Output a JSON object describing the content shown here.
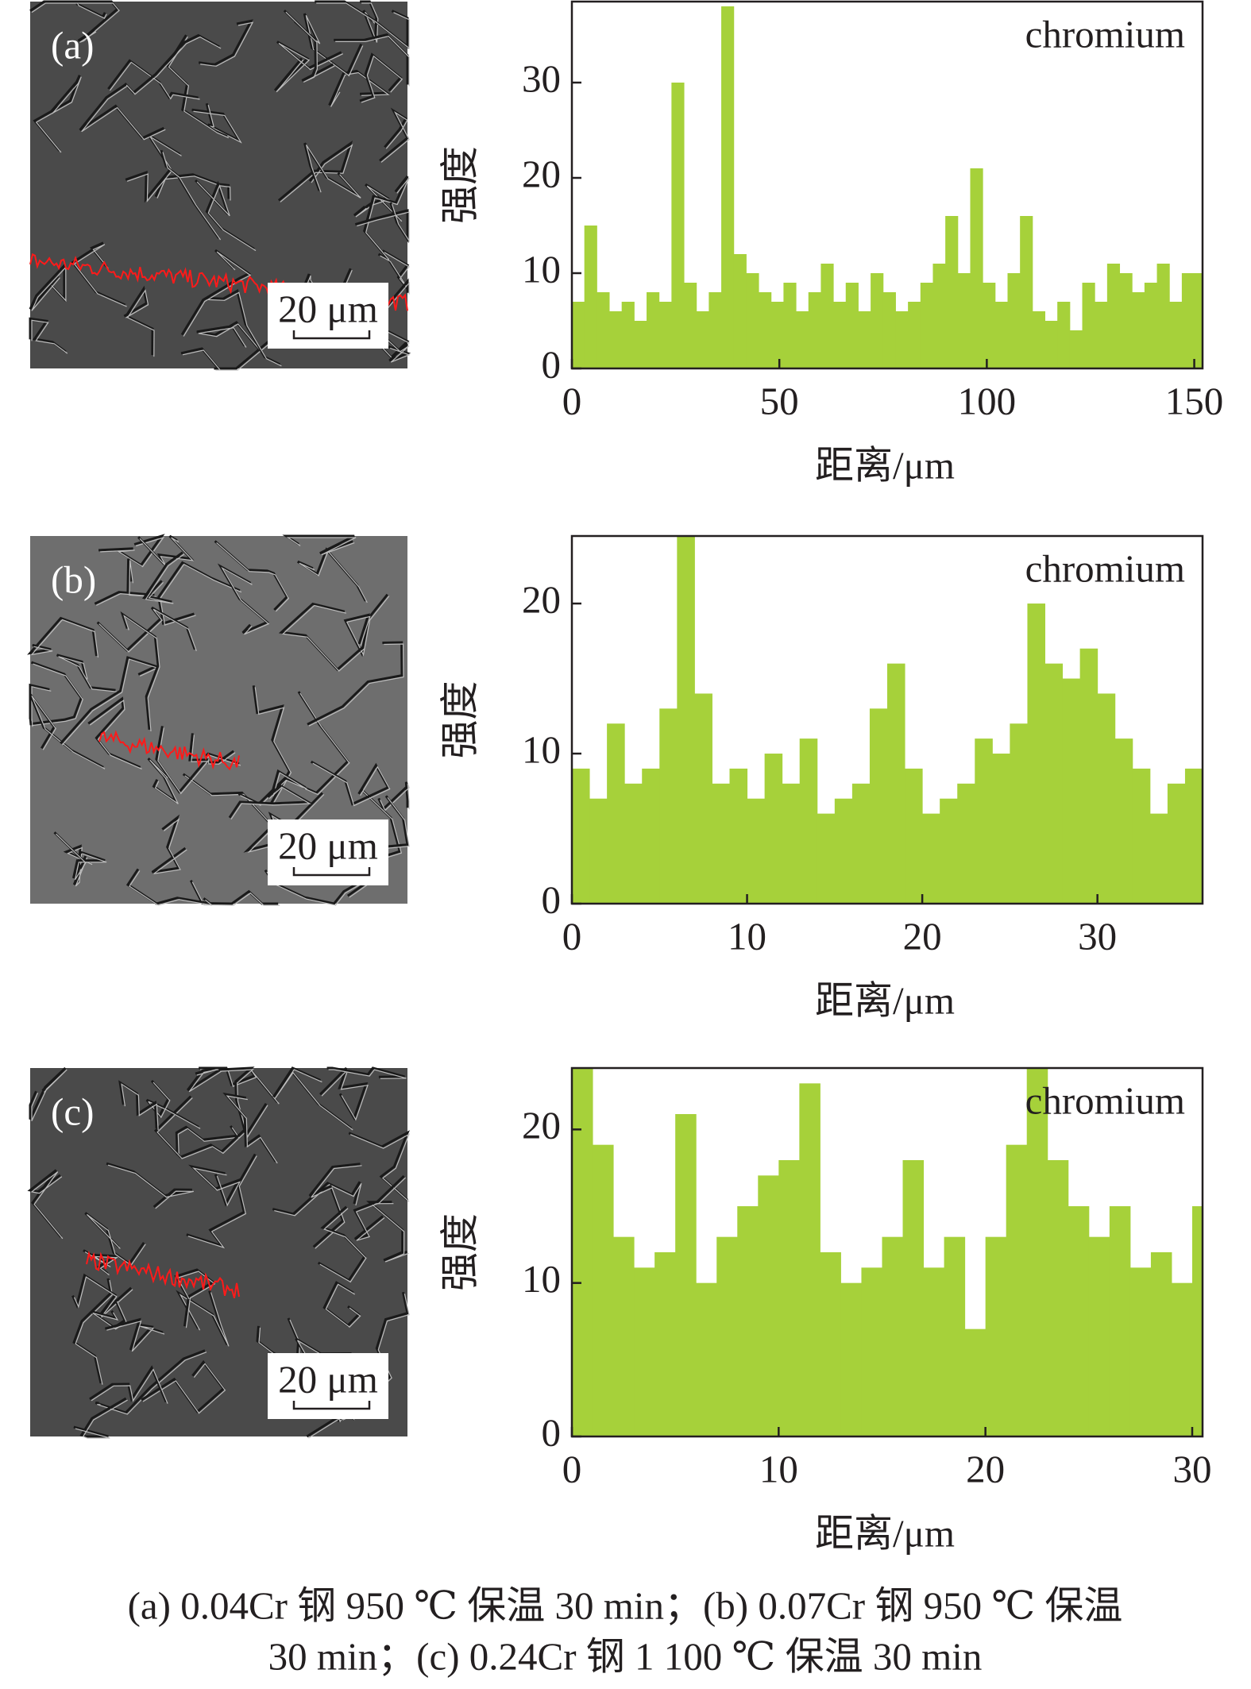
{
  "chart_data": [
    {
      "type": "bar",
      "annotation": "chromium",
      "xlabel": "距离/μm",
      "ylabel": "强度",
      "color": "#a6d13a",
      "x": [
        0,
        3,
        6,
        9,
        12,
        15,
        18,
        21,
        24,
        27,
        30,
        33,
        36,
        39,
        42,
        45,
        48,
        51,
        54,
        57,
        60,
        63,
        66,
        69,
        72,
        75,
        78,
        81,
        84,
        87,
        90,
        93,
        96,
        99,
        102,
        105,
        108,
        111,
        114,
        117,
        120,
        123,
        126,
        129,
        132,
        135,
        138,
        141,
        144,
        147,
        150
      ],
      "values": [
        7,
        15,
        8,
        6,
        7,
        5,
        8,
        7,
        30,
        9,
        6,
        8,
        38,
        12,
        10,
        8,
        7,
        9,
        6,
        8,
        11,
        7,
        9,
        6,
        10,
        8,
        6,
        7,
        9,
        11,
        16,
        10,
        21,
        9,
        7,
        10,
        16,
        6,
        5,
        7,
        4,
        9,
        7,
        11,
        10,
        8,
        9,
        11,
        7,
        10,
        10
      ],
      "xlim": [
        0,
        152
      ],
      "ylim": [
        0,
        38.5
      ],
      "xticks": [
        0,
        50,
        100,
        150
      ],
      "yticks": [
        0,
        10,
        20,
        30
      ]
    },
    {
      "type": "bar",
      "annotation": "chromium",
      "xlabel": "距离/μm",
      "ylabel": "强度",
      "color": "#a6d13a",
      "x": [
        0,
        1,
        2,
        3,
        4,
        5,
        6,
        7,
        8,
        9,
        10,
        11,
        12,
        13,
        14,
        15,
        16,
        17,
        18,
        19,
        20,
        21,
        22,
        23,
        24,
        25,
        26,
        27,
        28,
        29,
        30,
        31,
        32,
        33,
        34,
        35
      ],
      "values": [
        9,
        7,
        12,
        8,
        9,
        13,
        25,
        14,
        8,
        9,
        7,
        10,
        8,
        11,
        6,
        7,
        8,
        13,
        16,
        9,
        6,
        7,
        8,
        11,
        10,
        12,
        20,
        16,
        15,
        17,
        14,
        11,
        9,
        6,
        8,
        9
      ],
      "xlim": [
        0,
        36
      ],
      "ylim": [
        0,
        24.5
      ],
      "xticks": [
        0,
        10,
        20,
        30
      ],
      "yticks": [
        0,
        10,
        20
      ]
    },
    {
      "type": "bar",
      "annotation": "chromium",
      "xlabel": "距离/μm",
      "ylabel": "强度",
      "color": "#a6d13a",
      "x": [
        0,
        1,
        2,
        3,
        4,
        5,
        6,
        7,
        8,
        9,
        10,
        11,
        12,
        13,
        14,
        15,
        16,
        17,
        18,
        19,
        20,
        21,
        22,
        23,
        24,
        25,
        26,
        27,
        28,
        29,
        30
      ],
      "values": [
        24,
        19,
        13,
        11,
        12,
        21,
        10,
        13,
        15,
        17,
        18,
        23,
        12,
        10,
        11,
        13,
        18,
        11,
        13,
        7,
        13,
        19,
        24,
        18,
        15,
        13,
        15,
        11,
        12,
        10,
        15
      ],
      "xlim": [
        0,
        30.5
      ],
      "ylim": [
        0,
        24
      ],
      "xticks": [
        0,
        10,
        20,
        30
      ],
      "yticks": [
        0,
        10,
        20
      ]
    }
  ],
  "images": [
    {
      "label": "(a)",
      "scale_bar": "20 μm"
    },
    {
      "label": "(b)",
      "scale_bar": "20 μm"
    },
    {
      "label": "(c)",
      "scale_bar": "20 μm"
    }
  ],
  "caption": [
    "(a) 0.04Cr 钢 950 ℃ 保温 30 min；(b) 0.07Cr 钢 950 ℃ 保温",
    "30 min；(c) 0.24Cr 钢 1 100 ℃ 保温 30 min"
  ]
}
